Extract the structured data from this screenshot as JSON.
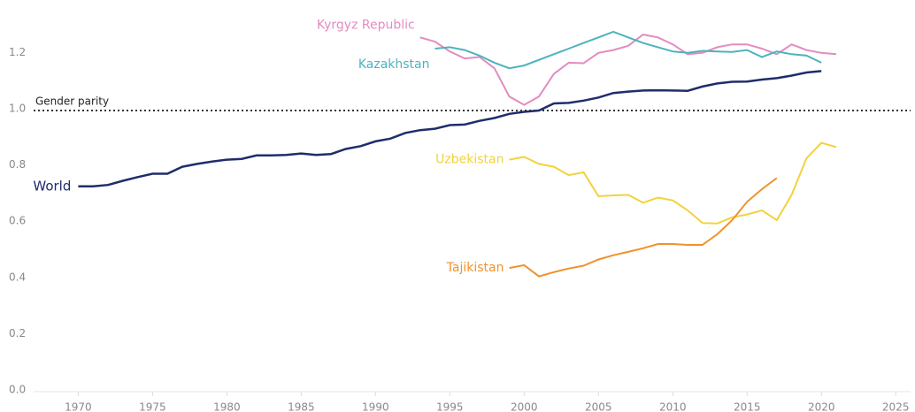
{
  "chart_data": {
    "type": "line",
    "reference_line": {
      "value": 1.0,
      "label": "Gender parity"
    },
    "xlim": [
      1967,
      2026
    ],
    "xticks": [
      1970,
      1975,
      1980,
      1985,
      1990,
      1995,
      2000,
      2005,
      2010,
      2015,
      2020,
      2025
    ],
    "ylim": [
      0,
      1.33
    ],
    "yticks": [
      {
        "value": 0,
        "label": "0.0"
      },
      0.2,
      0.4,
      0.6,
      0.8,
      {
        "value": 1,
        "label": "1.0"
      },
      1.2
    ],
    "series": [
      {
        "name": "World",
        "color": "#1f2d6b",
        "x": [
          1970,
          1971,
          1972,
          1973,
          1974,
          1975,
          1976,
          1977,
          1978,
          1979,
          1980,
          1981,
          1982,
          1983,
          1984,
          1985,
          1986,
          1987,
          1988,
          1989,
          1990,
          1991,
          1992,
          1993,
          1994,
          1995,
          1996,
          1997,
          1998,
          1999,
          2000,
          2001,
          2002,
          2003,
          2004,
          2005,
          2006,
          2007,
          2008,
          2009,
          2010,
          2011,
          2012,
          2013,
          2014,
          2015,
          2016,
          2017,
          2018,
          2019,
          2020
        ],
        "values": [
          0.73,
          0.73,
          0.735,
          0.75,
          0.763,
          0.775,
          0.775,
          0.8,
          0.81,
          0.818,
          0.825,
          0.828,
          0.84,
          0.84,
          0.842,
          0.847,
          0.842,
          0.845,
          0.863,
          0.873,
          0.89,
          0.9,
          0.92,
          0.93,
          0.935,
          0.948,
          0.95,
          0.963,
          0.973,
          0.988,
          0.995,
          1.0,
          1.025,
          1.027,
          1.035,
          1.046,
          1.062,
          1.067,
          1.071,
          1.072,
          1.071,
          1.07,
          1.085,
          1.096,
          1.102,
          1.103,
          1.11,
          1.115,
          1.124,
          1.135,
          1.14
        ]
      },
      {
        "name": "Kyrgyz Republic",
        "color": "#e38cbf",
        "x": [
          1993,
          1994,
          1995,
          1996,
          1997,
          1998,
          1999,
          2000,
          2001,
          2002,
          2003,
          2004,
          2005,
          2006,
          2007,
          2008,
          2009,
          2010,
          2011,
          2012,
          2013,
          2014,
          2015,
          2016,
          2017,
          2018,
          2019,
          2020,
          2021
        ],
        "values": [
          1.26,
          1.245,
          1.21,
          1.185,
          1.19,
          1.15,
          1.05,
          1.02,
          1.05,
          1.13,
          1.17,
          1.168,
          1.205,
          1.215,
          1.23,
          1.27,
          1.26,
          1.235,
          1.2,
          1.205,
          1.225,
          1.235,
          1.235,
          1.22,
          1.2,
          1.235,
          1.215,
          1.205,
          1.2
        ]
      },
      {
        "name": "Kazakhstan",
        "color": "#4cb3bf",
        "x": [
          1994,
          1995,
          1996,
          1997,
          1998,
          1999,
          2000,
          2001,
          2002,
          2003,
          2004,
          2005,
          2006,
          2007,
          2008,
          2009,
          2010,
          2011,
          2012,
          2013,
          2014,
          2015,
          2016,
          2017,
          2018,
          2019,
          2020
        ],
        "values": [
          1.22,
          1.225,
          1.215,
          1.195,
          1.17,
          1.15,
          1.16,
          1.18,
          1.2,
          1.22,
          1.24,
          1.26,
          1.28,
          1.26,
          1.24,
          1.225,
          1.21,
          1.205,
          1.212,
          1.21,
          1.208,
          1.215,
          1.19,
          1.21,
          1.2,
          1.195,
          1.17
        ]
      },
      {
        "name": "Uzbekistan",
        "color": "#f2d23c",
        "x": [
          1999,
          2000,
          2001,
          2002,
          2003,
          2004,
          2005,
          2006,
          2007,
          2008,
          2009,
          2010,
          2011,
          2012,
          2013,
          2014,
          2015,
          2016,
          2017,
          2018,
          2019,
          2020,
          2021
        ],
        "values": [
          0.825,
          0.835,
          0.81,
          0.8,
          0.77,
          0.78,
          0.695,
          0.698,
          0.7,
          0.672,
          0.69,
          0.68,
          0.645,
          0.6,
          0.598,
          0.62,
          0.63,
          0.645,
          0.61,
          0.7,
          0.83,
          0.885,
          0.87
        ]
      },
      {
        "name": "Tajikistan",
        "color": "#f0922b",
        "x": [
          1999,
          2000,
          2001,
          2002,
          2003,
          2004,
          2005,
          2006,
          2007,
          2008,
          2009,
          2010,
          2011,
          2012,
          2013,
          2014,
          2015,
          2016,
          2017
        ],
        "values": [
          0.44,
          0.45,
          0.41,
          0.425,
          0.438,
          0.448,
          0.47,
          0.485,
          0.497,
          0.51,
          0.525,
          0.525,
          0.522,
          0.522,
          0.56,
          0.61,
          0.675,
          0.72,
          0.76
        ]
      }
    ]
  }
}
